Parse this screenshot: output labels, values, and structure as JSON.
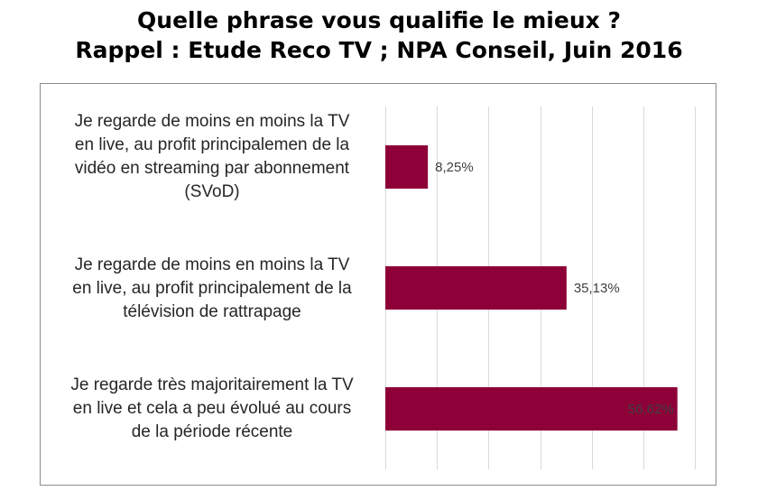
{
  "title_lines": [
    "Quelle phrase vous qualifie le mieux ?",
    "Rappel : Etude Reco TV ; NPA Conseil, Juin 2016"
  ],
  "colors": {
    "bar": "#8e0038",
    "grid": "#d9d9d9",
    "frame": "#8c8c8c",
    "label": "#404040"
  },
  "chart_data": {
    "type": "bar",
    "orientation": "horizontal",
    "categories": [
      [
        "Je regarde de moins en moins la TV",
        "en live, au profit principalemen de la",
        "vidéo en streaming par abonnement",
        "(SVoD)"
      ],
      [
        "Je regarde de moins en moins la TV",
        "en live, au profit principalement de la",
        "télévision de rattrapage"
      ],
      [
        "Je regarde très majoritairement la TV",
        "en live et cela a peu évolué au cours",
        "de la période récente"
      ]
    ],
    "values": [
      8.25,
      35.13,
      56.62
    ],
    "value_labels": [
      "8,25%",
      "35,13%",
      "56,62%"
    ],
    "xlim": [
      0,
      60
    ],
    "x_gridlines": [
      0,
      10,
      20,
      30,
      40,
      50,
      60
    ],
    "grid": true,
    "legend": "none"
  }
}
